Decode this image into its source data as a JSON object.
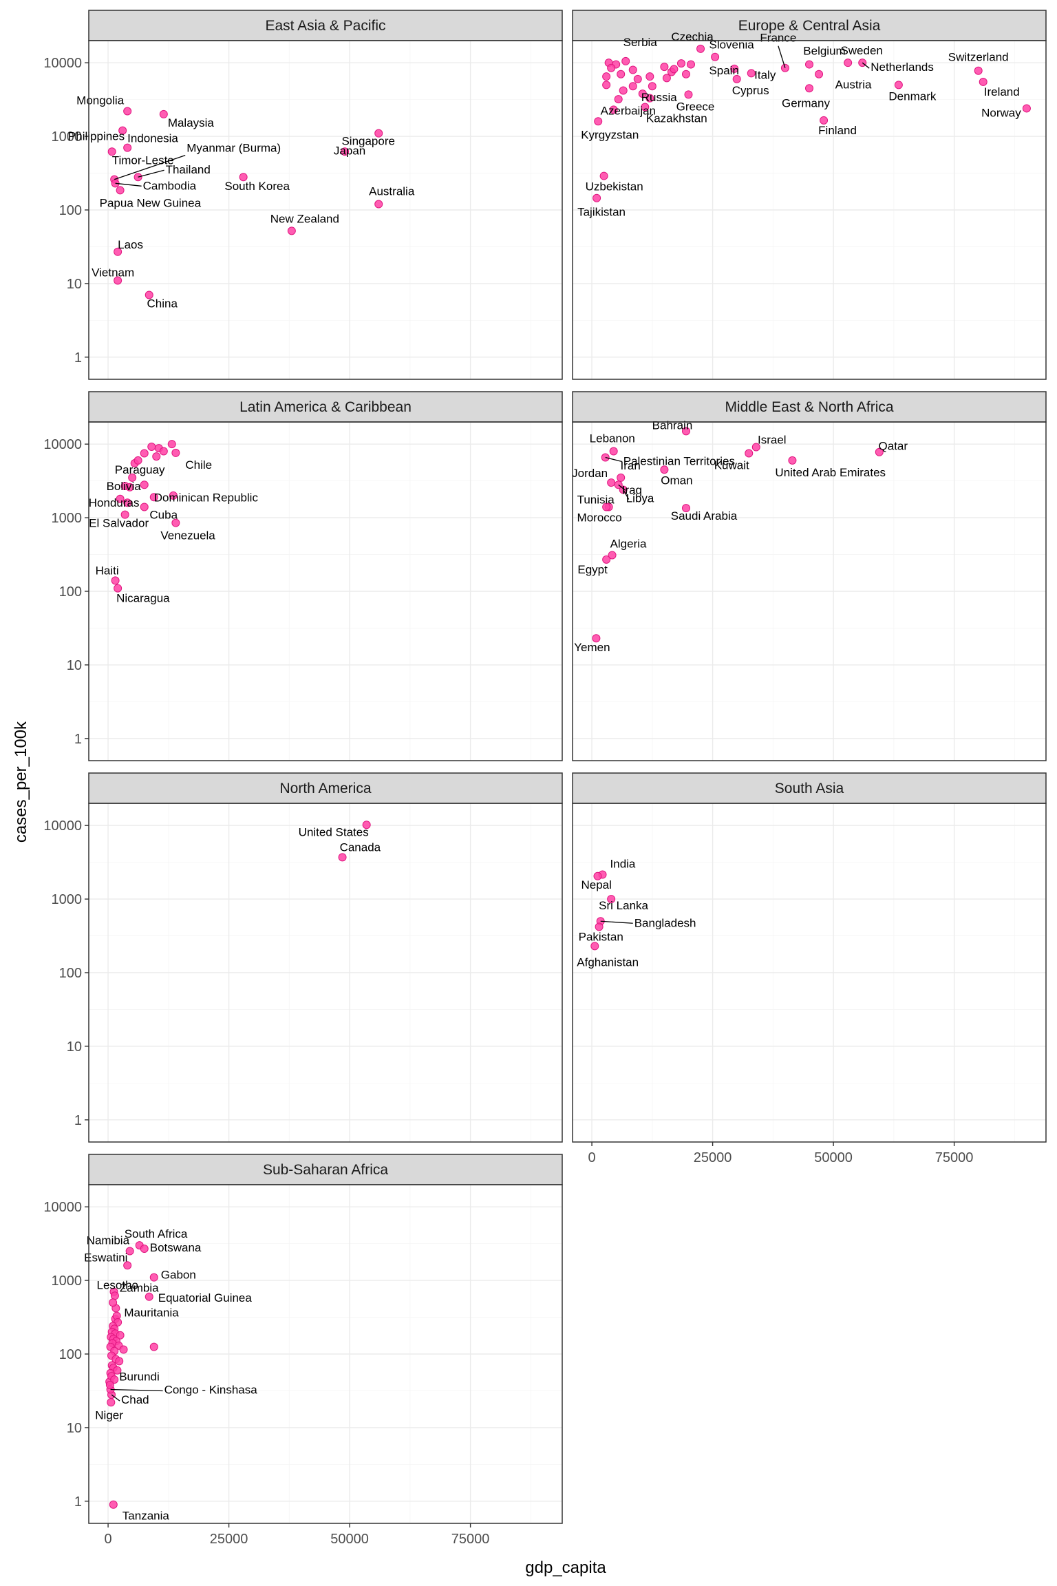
{
  "chart_data": {
    "type": "scatter",
    "facet_by": "region",
    "xlabel": "gdp_capita",
    "ylabel": "cases_per_100k",
    "x_ticks": [
      0,
      25000,
      50000,
      75000
    ],
    "xlim": [
      -4000,
      94000
    ],
    "y_scale": "log10",
    "y_ticks": [
      1,
      10,
      100,
      1000,
      10000
    ],
    "ylim": [
      0.5,
      20000
    ],
    "grid": true,
    "color": "#ff3fa4",
    "panels": [
      {
        "title": "East Asia & Pacific",
        "points": [
          {
            "x": 4000,
            "y": 2200,
            "label": "Mongolia"
          },
          {
            "x": 3000,
            "y": 1200,
            "label": "Philippines"
          },
          {
            "x": 11500,
            "y": 2000,
            "label": "Malaysia"
          },
          {
            "x": 4000,
            "y": 700,
            "label": "Indonesia"
          },
          {
            "x": 800,
            "y": 620,
            "label": "Timor-Leste"
          },
          {
            "x": 1300,
            "y": 260,
            "label": "Myanmar (Burma)"
          },
          {
            "x": 6200,
            "y": 280,
            "label": "Thailand"
          },
          {
            "x": 1500,
            "y": 230,
            "label": "Cambodia"
          },
          {
            "x": 2500,
            "y": 185,
            "label": "Papua New Guinea"
          },
          {
            "x": 28000,
            "y": 280,
            "label": "South Korea"
          },
          {
            "x": 49000,
            "y": 620,
            "label": "Japan"
          },
          {
            "x": 56000,
            "y": 1100,
            "label": "Singapore"
          },
          {
            "x": 56000,
            "y": 120,
            "label": "Australia"
          },
          {
            "x": 38000,
            "y": 52,
            "label": "New Zealand"
          },
          {
            "x": 2000,
            "y": 27,
            "label": "Laos"
          },
          {
            "x": 2000,
            "y": 11,
            "label": "Vietnam"
          },
          {
            "x": 8500,
            "y": 7,
            "label": "China"
          }
        ]
      },
      {
        "title": "Europe & Central Asia",
        "points": [
          {
            "x": 22500,
            "y": 15500,
            "label": "Czechia"
          },
          {
            "x": 25500,
            "y": 12000,
            "label": "Slovenia"
          },
          {
            "x": 40000,
            "y": 8500,
            "label": "France"
          },
          {
            "x": 7000,
            "y": 10500,
            "label": "Serbia"
          },
          {
            "x": 45000,
            "y": 9500,
            "label": "Belgium"
          },
          {
            "x": 53000,
            "y": 10000,
            "label": "Sweden"
          },
          {
            "x": 56000,
            "y": 10000,
            "label": "Netherlands"
          },
          {
            "x": 80000,
            "y": 7800,
            "label": "Switzerland"
          },
          {
            "x": 29500,
            "y": 8300,
            "label": "Spain"
          },
          {
            "x": 33000,
            "y": 7200,
            "label": "Italy"
          },
          {
            "x": 10500,
            "y": 3800,
            "label": "Russia"
          },
          {
            "x": 20000,
            "y": 3700,
            "label": "Greece"
          },
          {
            "x": 30000,
            "y": 6000,
            "label": "Cyprus"
          },
          {
            "x": 47000,
            "y": 7000,
            "label": "Austria"
          },
          {
            "x": 45000,
            "y": 4500,
            "label": "Germany"
          },
          {
            "x": 63500,
            "y": 5000,
            "label": "Denmark"
          },
          {
            "x": 81000,
            "y": 5500,
            "label": "Ireland"
          },
          {
            "x": 90000,
            "y": 2400,
            "label": "Norway"
          },
          {
            "x": 48000,
            "y": 1650,
            "label": "Finland"
          },
          {
            "x": 4500,
            "y": 2300,
            "label": "Azerbaijan"
          },
          {
            "x": 11000,
            "y": 2500,
            "label": "Kazakhstan"
          },
          {
            "x": 1300,
            "y": 1600,
            "label": "Kyrgyzstan"
          },
          {
            "x": 2500,
            "y": 290,
            "label": "Uzbekistan"
          },
          {
            "x": 1000,
            "y": 145,
            "label": "Tajikistan"
          },
          {
            "x": 3500,
            "y": 10000
          },
          {
            "x": 5000,
            "y": 9500
          },
          {
            "x": 4000,
            "y": 8500
          },
          {
            "x": 6000,
            "y": 7000
          },
          {
            "x": 3000,
            "y": 6500
          },
          {
            "x": 8500,
            "y": 8000
          },
          {
            "x": 9500,
            "y": 6000
          },
          {
            "x": 12000,
            "y": 6500
          },
          {
            "x": 15000,
            "y": 8800
          },
          {
            "x": 16500,
            "y": 7500
          },
          {
            "x": 17000,
            "y": 8200
          },
          {
            "x": 18500,
            "y": 9800
          },
          {
            "x": 20500,
            "y": 9500
          },
          {
            "x": 15500,
            "y": 6200
          },
          {
            "x": 12500,
            "y": 4800
          },
          {
            "x": 6500,
            "y": 4200
          },
          {
            "x": 5500,
            "y": 3200
          },
          {
            "x": 3000,
            "y": 5000
          },
          {
            "x": 8500,
            "y": 4800
          },
          {
            "x": 12000,
            "y": 3300
          },
          {
            "x": 19500,
            "y": 7000
          }
        ]
      },
      {
        "title": "Latin America & Caribbean",
        "points": [
          {
            "x": 13200,
            "y": 10000
          },
          {
            "x": 9000,
            "y": 9200
          },
          {
            "x": 10500,
            "y": 8800
          },
          {
            "x": 11500,
            "y": 8000
          },
          {
            "x": 14000,
            "y": 7600,
            "label": "Chile"
          },
          {
            "x": 7500,
            "y": 7500
          },
          {
            "x": 10000,
            "y": 6800
          },
          {
            "x": 5500,
            "y": 5500
          },
          {
            "x": 6200,
            "y": 6000
          },
          {
            "x": 5000,
            "y": 3500,
            "label": "Paraguay"
          },
          {
            "x": 3500,
            "y": 2700,
            "label": "Bolivia"
          },
          {
            "x": 4500,
            "y": 2600
          },
          {
            "x": 7500,
            "y": 2800
          },
          {
            "x": 13500,
            "y": 2000
          },
          {
            "x": 9500,
            "y": 1900,
            "label": "Dominican Republic"
          },
          {
            "x": 2500,
            "y": 1800,
            "label": "Honduras"
          },
          {
            "x": 4000,
            "y": 1600
          },
          {
            "x": 7500,
            "y": 1400,
            "label": "Cuba"
          },
          {
            "x": 3500,
            "y": 1100,
            "label": "El Salvador"
          },
          {
            "x": 14000,
            "y": 850,
            "label": "Venezuela"
          },
          {
            "x": 1500,
            "y": 140,
            "label": "Haiti"
          },
          {
            "x": 2000,
            "y": 110,
            "label": "Nicaragua"
          }
        ]
      },
      {
        "title": "Middle East & North Africa",
        "points": [
          {
            "x": 19500,
            "y": 15000,
            "label": "Bahrain"
          },
          {
            "x": 4500,
            "y": 8000,
            "label": "Lebanon"
          },
          {
            "x": 2800,
            "y": 6600,
            "label": "Palestinian Territories"
          },
          {
            "x": 34000,
            "y": 9100,
            "label": "Israel"
          },
          {
            "x": 32500,
            "y": 7500,
            "label": "Kuwait"
          },
          {
            "x": 41500,
            "y": 6000,
            "label": "United Arab Emirates"
          },
          {
            "x": 59500,
            "y": 7800,
            "label": "Qatar"
          },
          {
            "x": 4000,
            "y": 3000,
            "label": "Jordan"
          },
          {
            "x": 6000,
            "y": 3500,
            "label": "Iran"
          },
          {
            "x": 15000,
            "y": 4500,
            "label": "Oman"
          },
          {
            "x": 5500,
            "y": 2800,
            "label": "Iraq"
          },
          {
            "x": 6500,
            "y": 2400,
            "label": "Libya"
          },
          {
            "x": 3500,
            "y": 1400,
            "label": "Tunisia"
          },
          {
            "x": 19500,
            "y": 1350,
            "label": "Saudi Arabia"
          },
          {
            "x": 3000,
            "y": 1400,
            "label": "Morocco"
          },
          {
            "x": 4200,
            "y": 310,
            "label": "Algeria"
          },
          {
            "x": 3000,
            "y": 270,
            "label": "Egypt"
          },
          {
            "x": 900,
            "y": 23,
            "label": "Yemen"
          }
        ]
      },
      {
        "title": "North America",
        "points": [
          {
            "x": 53500,
            "y": 10200,
            "label": "United States"
          },
          {
            "x": 48500,
            "y": 3700,
            "label": "Canada"
          }
        ]
      },
      {
        "title": "South Asia",
        "points": [
          {
            "x": 2200,
            "y": 2150,
            "label": "India"
          },
          {
            "x": 1200,
            "y": 2050,
            "label": "Nepal"
          },
          {
            "x": 4000,
            "y": 1000,
            "label": "Sri Lanka"
          },
          {
            "x": 1800,
            "y": 500,
            "label": "Bangladesh"
          },
          {
            "x": 1500,
            "y": 420,
            "label": "Pakistan"
          },
          {
            "x": 600,
            "y": 230,
            "label": "Afghanistan"
          }
        ]
      },
      {
        "title": "Sub-Saharan Africa",
        "points": [
          {
            "x": 6500,
            "y": 3000,
            "label": "South Africa"
          },
          {
            "x": 4500,
            "y": 2500,
            "label": "Namibia"
          },
          {
            "x": 7500,
            "y": 2700,
            "label": "Botswana"
          },
          {
            "x": 4000,
            "y": 1600,
            "label": "Eswatini"
          },
          {
            "x": 9500,
            "y": 1100,
            "label": "Gabon"
          },
          {
            "x": 1200,
            "y": 700,
            "label": "Lesotho"
          },
          {
            "x": 1400,
            "y": 620,
            "label": "Zambia"
          },
          {
            "x": 8500,
            "y": 600,
            "label": "Equatorial Guinea"
          },
          {
            "x": 1600,
            "y": 420,
            "label": "Mauritania"
          },
          {
            "x": 300,
            "y": 42,
            "label": "Burundi"
          },
          {
            "x": 700,
            "y": 28,
            "label": "Chad"
          },
          {
            "x": 500,
            "y": 33,
            "label": "Congo - Kinshasa"
          },
          {
            "x": 600,
            "y": 22,
            "label": "Niger"
          },
          {
            "x": 1100,
            "y": 0.9,
            "label": "Tanzania"
          },
          {
            "x": 1000,
            "y": 500
          },
          {
            "x": 1500,
            "y": 300
          },
          {
            "x": 1800,
            "y": 330
          },
          {
            "x": 2000,
            "y": 270
          },
          {
            "x": 1000,
            "y": 240
          },
          {
            "x": 1300,
            "y": 220
          },
          {
            "x": 800,
            "y": 200
          },
          {
            "x": 1500,
            "y": 190
          },
          {
            "x": 2500,
            "y": 180
          },
          {
            "x": 600,
            "y": 170
          },
          {
            "x": 1100,
            "y": 160
          },
          {
            "x": 1700,
            "y": 150
          },
          {
            "x": 900,
            "y": 140
          },
          {
            "x": 2200,
            "y": 130
          },
          {
            "x": 500,
            "y": 125
          },
          {
            "x": 3200,
            "y": 115
          },
          {
            "x": 1300,
            "y": 110
          },
          {
            "x": 9500,
            "y": 125
          },
          {
            "x": 700,
            "y": 95
          },
          {
            "x": 1600,
            "y": 85
          },
          {
            "x": 2300,
            "y": 80
          },
          {
            "x": 800,
            "y": 70
          },
          {
            "x": 1100,
            "y": 65
          },
          {
            "x": 500,
            "y": 55
          },
          {
            "x": 700,
            "y": 50
          },
          {
            "x": 1300,
            "y": 45
          },
          {
            "x": 1900,
            "y": 60
          },
          {
            "x": 400,
            "y": 38
          }
        ]
      }
    ]
  }
}
